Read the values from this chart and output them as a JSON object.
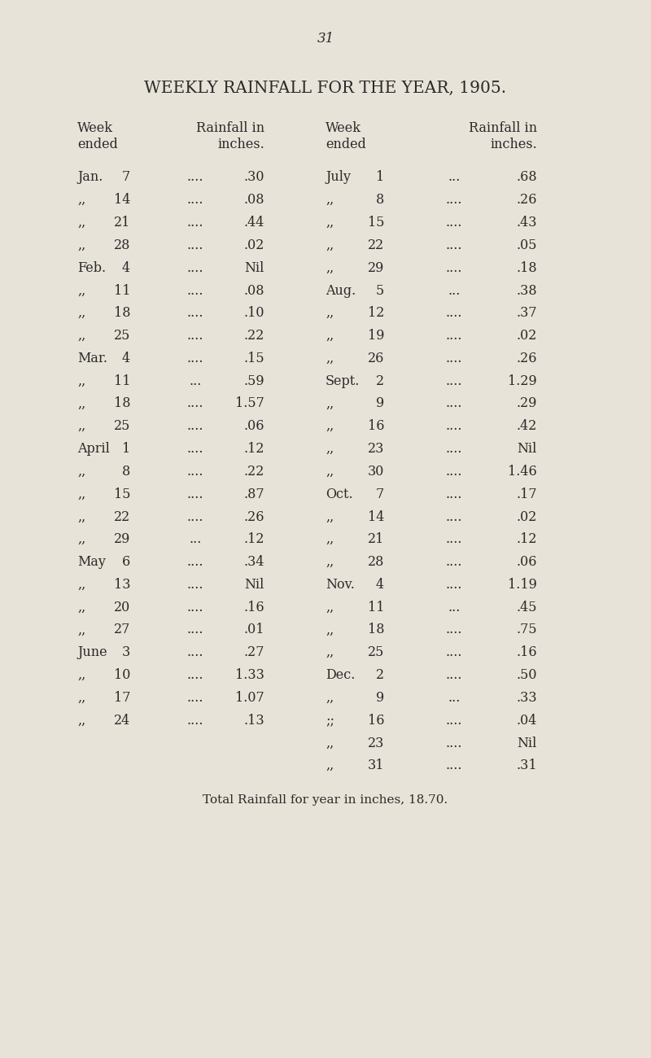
{
  "page_number": "31",
  "title": "WEEKLY RAINFALL FOR THE YEAR, 1ђ905.",
  "title_plain": "WEEKLY RAINFALL FOR THE YEAR, 1905.",
  "background_color": "#e8e3d8",
  "text_color": "#2a2a2a",
  "left_data": [
    [
      "Jan.",
      "7",
      "....",
      ".30"
    ],
    [
      ",,",
      "14",
      "....",
      ".08"
    ],
    [
      ",,",
      "21",
      "....",
      ".44"
    ],
    [
      ",,",
      "28",
      "....",
      ".02"
    ],
    [
      "Feb.",
      "4",
      "....",
      "Nil"
    ],
    [
      ",,",
      "11",
      "....",
      ".08"
    ],
    [
      ",,",
      "18",
      "....",
      ".10"
    ],
    [
      ",,",
      "25",
      "....",
      ".22"
    ],
    [
      "Mar.",
      "4",
      "....",
      ".15"
    ],
    [
      ",,",
      "11",
      "...",
      ".59"
    ],
    [
      ",,",
      "18",
      "....",
      "1.57"
    ],
    [
      ",,",
      "25",
      "....",
      ".06"
    ],
    [
      "April",
      "1",
      "....",
      ".12"
    ],
    [
      ",,",
      "8",
      "....",
      ".22"
    ],
    [
      ",,",
      "15",
      "....",
      ".87"
    ],
    [
      ",,",
      "22",
      "....",
      ".26"
    ],
    [
      ",,",
      "29",
      "...",
      ".12"
    ],
    [
      "May",
      "6",
      "....",
      ".34"
    ],
    [
      ",,",
      "13",
      "....",
      "Nil"
    ],
    [
      ",,",
      "20",
      "....",
      ".16"
    ],
    [
      ",,",
      "27",
      "....",
      ".01"
    ],
    [
      "June",
      "3",
      "....",
      ".27"
    ],
    [
      ",,",
      "10",
      "....",
      "1.33"
    ],
    [
      ",,",
      "17",
      "....",
      "1.07"
    ],
    [
      ",,",
      "24",
      "....",
      ".13"
    ]
  ],
  "right_data": [
    [
      "July",
      "1",
      "...",
      ".68"
    ],
    [
      ",,",
      "8",
      "....",
      ".26"
    ],
    [
      ",,",
      "15",
      "....",
      ".43"
    ],
    [
      ",,",
      "22",
      "....",
      ".05"
    ],
    [
      ",,",
      "29",
      "....",
      ".18"
    ],
    [
      "Aug.",
      "5",
      "...",
      ".38"
    ],
    [
      ",,",
      "12",
      "....",
      ".37"
    ],
    [
      ",,",
      "19",
      "....",
      ".02"
    ],
    [
      ",,",
      "26",
      "....",
      ".26"
    ],
    [
      "Sept.",
      "2",
      "....",
      "1.29"
    ],
    [
      ",,",
      "9",
      "....",
      ".29"
    ],
    [
      ",,",
      "16",
      "....",
      ".42"
    ],
    [
      ",,",
      "23",
      "....",
      "Nil"
    ],
    [
      ",,",
      "30",
      "....",
      "1.46"
    ],
    [
      "Oct.",
      "7",
      "....",
      ".17"
    ],
    [
      ",,",
      "14",
      "....",
      ".02"
    ],
    [
      ",,",
      "21",
      "....",
      ".12"
    ],
    [
      ",,",
      "28",
      "....",
      ".06"
    ],
    [
      "Nov.",
      "4",
      "....",
      "1.19"
    ],
    [
      ",,",
      "11",
      "...",
      ".45"
    ],
    [
      ",,",
      "18",
      "....",
      ".75"
    ],
    [
      ",,",
      "25",
      "....",
      ".16"
    ],
    [
      "Dec.",
      "2",
      "....",
      ".50"
    ],
    [
      ",,",
      "9",
      "...",
      ".33"
    ],
    [
      ";;",
      "16",
      "....",
      ".04"
    ],
    [
      ",,",
      "23",
      "....",
      "Nil"
    ],
    [
      ",,",
      "31",
      "....",
      ".31"
    ]
  ],
  "footer": "Total Rainfall for year in inches, 18.70."
}
